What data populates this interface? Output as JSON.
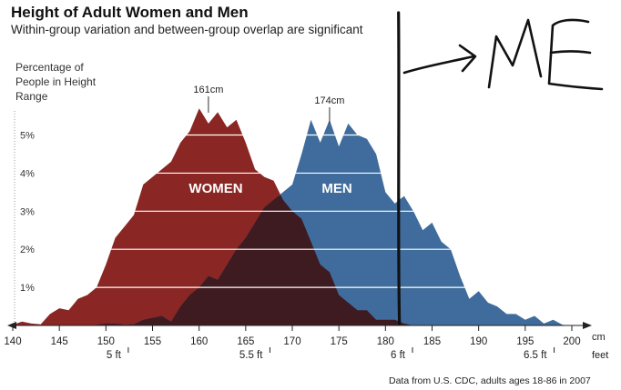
{
  "header": {
    "title": "Height of Adult Women and Men",
    "subtitle": "Within-group variation and between-group overlap are significant"
  },
  "source_note": "Data from U.S. CDC, adults ages 18-86 in 2007",
  "annotation": {
    "text": "I->ME",
    "line_at_cm": 181.5
  },
  "colors": {
    "women": "#8a2623",
    "men": "#3f6c9c",
    "overlap": "#3e1b21",
    "grid": "#ffffff",
    "annotation": "#111111"
  },
  "chart_data": {
    "type": "area",
    "title": "Height of Adult Women and Men",
    "ylabel": "Percentage of People in Height Range",
    "xlim": [
      140,
      201
    ],
    "ylim": [
      0,
      5.8
    ],
    "x_unit": "cm",
    "x_ticks": [
      140,
      145,
      150,
      155,
      160,
      165,
      170,
      175,
      180,
      185,
      190,
      195,
      200
    ],
    "y_ticks": [
      {
        "value": 1,
        "label": "1%"
      },
      {
        "value": 2,
        "label": "2%"
      },
      {
        "value": 3,
        "label": "3%"
      },
      {
        "value": 4,
        "label": "4%"
      },
      {
        "value": 5,
        "label": "5%"
      }
    ],
    "feet_unit": "feet",
    "feet_ticks": [
      {
        "cm": 152.4,
        "label": "5 ft"
      },
      {
        "cm": 167.6,
        "label": "5.5 ft"
      },
      {
        "cm": 182.9,
        "label": "6 ft"
      },
      {
        "cm": 198.1,
        "label": "6.5 ft"
      }
    ],
    "series": [
      {
        "name": "WOMEN",
        "peak_label": "161cm",
        "peak_cm": 161,
        "x": [
          140,
          141,
          142,
          143,
          144,
          145,
          146,
          147,
          148,
          149,
          150,
          151,
          152,
          153,
          154,
          155,
          156,
          157,
          158,
          159,
          160,
          161,
          162,
          163,
          164,
          165,
          166,
          167,
          168,
          169,
          170,
          171,
          172,
          173,
          174,
          175,
          176,
          177,
          178,
          179,
          180,
          181,
          182,
          183
        ],
        "values": [
          0.02,
          0.1,
          0.05,
          0.03,
          0.3,
          0.45,
          0.4,
          0.7,
          0.8,
          1.0,
          1.6,
          2.3,
          2.6,
          2.9,
          3.7,
          3.9,
          4.1,
          4.3,
          4.8,
          5.1,
          5.7,
          5.3,
          5.6,
          5.2,
          5.4,
          4.8,
          4.1,
          3.9,
          3.8,
          3.3,
          3.0,
          2.8,
          2.2,
          1.6,
          1.4,
          0.8,
          0.6,
          0.4,
          0.4,
          0.15,
          0.15,
          0.15,
          0.05,
          0.0
        ]
      },
      {
        "name": "MEN",
        "peak_label": "174cm",
        "peak_cm": 174,
        "x": [
          148,
          149,
          150,
          151,
          152,
          153,
          154,
          155,
          156,
          157,
          158,
          159,
          160,
          161,
          162,
          163,
          164,
          165,
          166,
          167,
          168,
          169,
          170,
          171,
          172,
          173,
          174,
          175,
          176,
          177,
          178,
          179,
          180,
          181,
          182,
          183,
          184,
          185,
          186,
          187,
          188,
          189,
          190,
          191,
          192,
          193,
          194,
          195,
          196,
          197,
          198,
          199,
          200
        ],
        "values": [
          0.0,
          0.02,
          0.05,
          0.05,
          0.02,
          0.03,
          0.15,
          0.2,
          0.25,
          0.1,
          0.5,
          0.8,
          1.0,
          1.3,
          1.2,
          1.6,
          2.0,
          2.3,
          2.7,
          3.1,
          3.3,
          3.5,
          3.7,
          4.5,
          5.4,
          4.8,
          5.4,
          4.7,
          5.3,
          5.0,
          4.9,
          4.5,
          3.5,
          3.2,
          3.4,
          3.0,
          2.5,
          2.7,
          2.2,
          2.0,
          1.3,
          0.7,
          0.9,
          0.6,
          0.5,
          0.3,
          0.3,
          0.15,
          0.25,
          0.05,
          0.15,
          0.02,
          0.0
        ]
      }
    ]
  }
}
